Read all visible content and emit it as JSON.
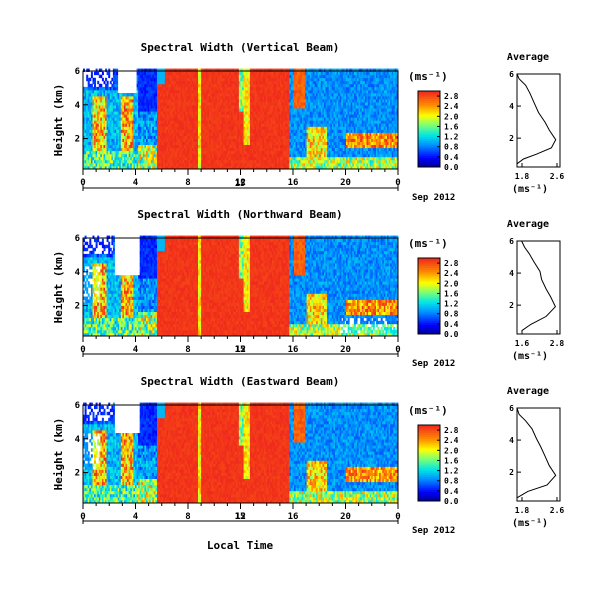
{
  "chart_data": [
    {
      "type": "heatmap",
      "title": "Spectral Width (Vertical Beam)",
      "ylabel": "Height (km)",
      "xticks": [
        "0",
        "4",
        "8",
        "12",
        "16",
        "20",
        "0"
      ],
      "xlim": [
        0,
        24
      ],
      "yticks": [
        "6",
        "4",
        "2"
      ],
      "ylim": [
        0.2,
        6
      ],
      "colorbar": {
        "unit": "(ms⁻¹)",
        "ticks": [
          "0.0",
          "0.4",
          "0.8",
          "1.2",
          "1.6",
          "2.0",
          "2.4",
          "2.8"
        ],
        "range": [
          0,
          3.0
        ]
      },
      "date_axis": {
        "day": "15",
        "label": "Sep 2012"
      },
      "average": {
        "title": "Average",
        "xlabel": "(ms⁻¹)",
        "xticks": [
          "1.8",
          "2.6"
        ],
        "yticks": [
          "6",
          "4",
          "2"
        ],
        "profile": [
          [
            1.6,
            0.4
          ],
          [
            1.8,
            0.7
          ],
          [
            2.1,
            1.0
          ],
          [
            2.45,
            1.4
          ],
          [
            2.55,
            1.9
          ],
          [
            2.4,
            2.5
          ],
          [
            2.3,
            3.0
          ],
          [
            2.15,
            3.6
          ],
          [
            2.05,
            4.2
          ],
          [
            1.95,
            4.8
          ],
          [
            1.85,
            5.3
          ],
          [
            1.7,
            5.7
          ],
          [
            1.6,
            6.0
          ]
        ]
      }
    },
    {
      "type": "heatmap",
      "title": "Spectral Width (Northward Beam)",
      "ylabel": "Height (km)",
      "xticks": [
        "0",
        "4",
        "8",
        "12",
        "16",
        "20",
        "0"
      ],
      "xlim": [
        0,
        24
      ],
      "yticks": [
        "6",
        "4",
        "2"
      ],
      "ylim": [
        0.2,
        6
      ],
      "colorbar": {
        "unit": "(ms⁻¹)",
        "ticks": [
          "0.0",
          "0.4",
          "0.8",
          "1.2",
          "1.6",
          "2.0",
          "2.4",
          "2.8"
        ],
        "range": [
          0,
          3.0
        ]
      },
      "date_axis": {
        "day": "15",
        "label": "Sep 2012"
      },
      "average": {
        "title": "Average",
        "xlabel": "(ms⁻¹)",
        "xticks": [
          "1.6",
          "2.8"
        ],
        "yticks": [
          "6",
          "4",
          "2"
        ],
        "profile": [
          [
            1.6,
            0.4
          ],
          [
            1.9,
            0.8
          ],
          [
            2.4,
            1.3
          ],
          [
            2.7,
            1.9
          ],
          [
            2.55,
            2.5
          ],
          [
            2.4,
            3.0
          ],
          [
            2.25,
            3.6
          ],
          [
            2.2,
            4.1
          ],
          [
            2.0,
            4.7
          ],
          [
            1.85,
            5.2
          ],
          [
            1.7,
            5.6
          ],
          [
            1.6,
            6.0
          ]
        ]
      }
    },
    {
      "type": "heatmap",
      "title": "Spectral Width (Eastward Beam)",
      "ylabel": "Height (km)",
      "xticks": [
        "0",
        "4",
        "8",
        "12",
        "16",
        "20",
        "0"
      ],
      "xlim": [
        0,
        24
      ],
      "yticks": [
        "6",
        "4",
        "2"
      ],
      "ylim": [
        0.2,
        6
      ],
      "colorbar": {
        "unit": "(ms⁻¹)",
        "ticks": [
          "0.0",
          "0.4",
          "0.8",
          "1.2",
          "1.6",
          "2.0",
          "2.4",
          "2.8"
        ],
        "range": [
          0,
          3.0
        ]
      },
      "date_axis": {
        "day": "15",
        "label": "Sep 2012"
      },
      "average": {
        "title": "Average",
        "xlabel": "(ms⁻¹)",
        "xticks": [
          "1.8",
          "2.6"
        ],
        "yticks": [
          "6",
          "4",
          "2"
        ],
        "profile": [
          [
            1.6,
            0.4
          ],
          [
            1.9,
            0.8
          ],
          [
            2.35,
            1.2
          ],
          [
            2.55,
            1.8
          ],
          [
            2.4,
            2.4
          ],
          [
            2.3,
            3.0
          ],
          [
            2.2,
            3.6
          ],
          [
            2.1,
            4.1
          ],
          [
            2.0,
            4.7
          ],
          [
            1.85,
            5.2
          ],
          [
            1.7,
            5.6
          ],
          [
            1.6,
            6.0
          ]
        ]
      }
    }
  ],
  "shared_xlabel": "Local Time"
}
